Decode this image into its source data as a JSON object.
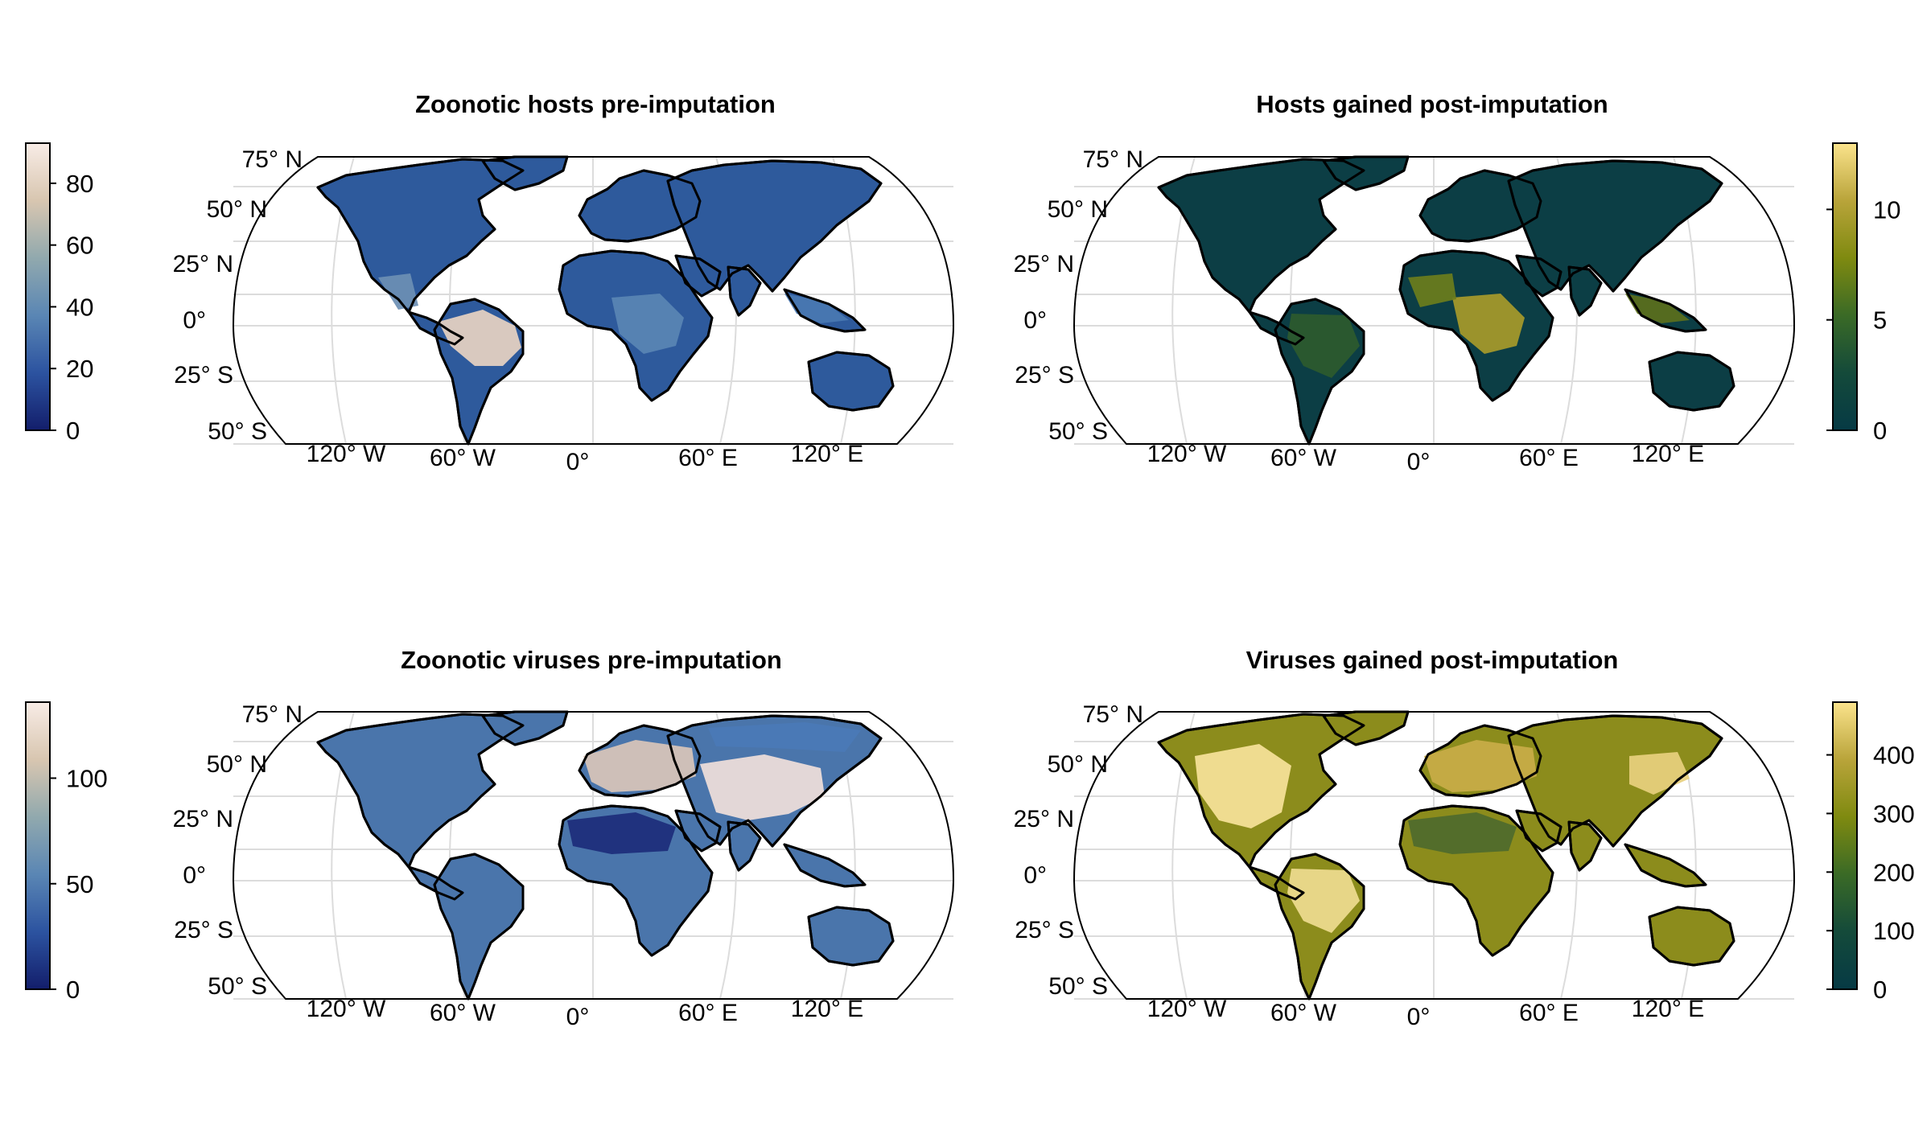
{
  "panels": [
    {
      "title": "Zoonotic hosts pre-imputation",
      "colorbar": {
        "side": "left",
        "min": 0,
        "max": 93,
        "ticks": [
          0,
          20,
          40,
          60,
          80
        ],
        "colormap": [
          "#131e6b",
          "#2c53a0",
          "#5a86b4",
          "#91a9ae",
          "#d8c6b0",
          "#f8ece6"
        ]
      },
      "land_color": "#2e5a9c",
      "hotspots": [
        {
          "region": "South America (Amazon)",
          "color": "#e8d3c2"
        },
        {
          "region": "Central America",
          "color": "#6d8fb4"
        },
        {
          "region": "Central Africa",
          "color": "#5a86b4"
        },
        {
          "region": "Southeast Asia",
          "color": "#4a78b2"
        }
      ]
    },
    {
      "title": "Hosts gained post-imputation",
      "colorbar": {
        "side": "right",
        "min": 0,
        "max": 13,
        "ticks": [
          0,
          5,
          10
        ],
        "colormap": [
          "#063a45",
          "#144a3a",
          "#3a6a26",
          "#7f8a10",
          "#b9a43a",
          "#fbe38c"
        ]
      },
      "land_color": "#0c3e45",
      "hotspots": [
        {
          "region": "Central Africa",
          "color": "#a89a2a"
        },
        {
          "region": "West Africa",
          "color": "#6d7d1c"
        },
        {
          "region": "Southeast Asia",
          "color": "#5c6f1c"
        },
        {
          "region": "South America",
          "color": "#2e5a2e"
        }
      ]
    },
    {
      "title": "Zoonotic viruses pre-imputation",
      "colorbar": {
        "side": "left",
        "min": 0,
        "max": 136,
        "ticks": [
          0,
          50,
          100
        ],
        "colormap": [
          "#131e6b",
          "#2c53a0",
          "#5a86b4",
          "#91a9ae",
          "#d8c6b0",
          "#f8ece6"
        ]
      },
      "land_color": "#4a75ab",
      "hotspots": [
        {
          "region": "Europe",
          "color": "#d9c6b8"
        },
        {
          "region": "South Asia",
          "color": "#f0e0da"
        },
        {
          "region": "Sahara",
          "color": "#1c2c7a"
        },
        {
          "region": "North Asia",
          "color": "#4a7ab6"
        }
      ]
    },
    {
      "title": "Viruses gained post-imputation",
      "colorbar": {
        "side": "right",
        "min": 0,
        "max": 490,
        "ticks": [
          0,
          100,
          200,
          300,
          400
        ],
        "colormap": [
          "#063a45",
          "#144a3a",
          "#3a6a26",
          "#7f8a10",
          "#b9a43a",
          "#fbe38c"
        ]
      },
      "land_color": "#8c8c1c",
      "hotspots": [
        {
          "region": "Eastern North America",
          "color": "#f7e39a"
        },
        {
          "region": "South America",
          "color": "#efdc90"
        },
        {
          "region": "Europe",
          "color": "#c9ad48"
        },
        {
          "region": "China",
          "color": "#e8d07e"
        },
        {
          "region": "Sahara",
          "color": "#4e6a2c"
        }
      ]
    }
  ],
  "lat_labels": [
    "75° N",
    "50° N",
    "25° N",
    "0°",
    "25° S",
    "50° S"
  ],
  "lon_labels": [
    "120° W",
    "60° W",
    "0°",
    "60° E",
    "120° E"
  ]
}
